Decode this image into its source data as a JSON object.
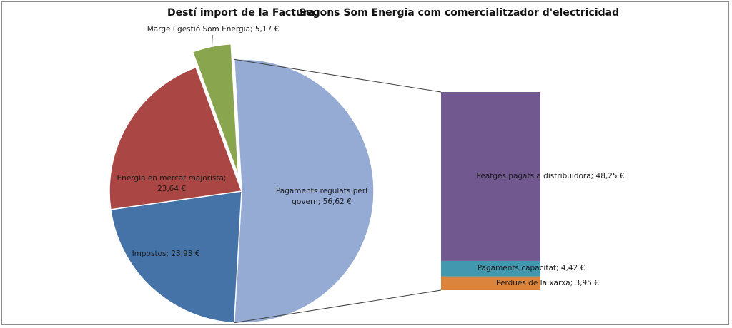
{
  "chart_data": {
    "type": "pie-of-bar",
    "title": "Destí import de la Factura",
    "subtitle": "Segons Som Energia com comercialitzador d'electricidad",
    "pie": {
      "values": [
        56.62,
        23.93,
        23.64,
        5.17
      ],
      "value_labels": [
        "Pagaments regulats perl govern; 56,62 €",
        "Impostos; 23,93 €",
        "Energia en mercat majorista; 23,64 €",
        "Marge i gestió Som Energia; 5,17 €"
      ],
      "colors": [
        "#95abd3",
        "#4572a7",
        "#aa4643",
        "#89a54e"
      ]
    },
    "bar": {
      "values": [
        3.95,
        4.42,
        48.25
      ],
      "value_labels": [
        "Perdues de la xarxa; 3,95 €",
        "Pagaments capacitat; 4,42 €",
        "Peatges pagats a distribuidora; 48,25 €"
      ],
      "colors": [
        "#db843d",
        "#4198af",
        "#71588f"
      ]
    }
  }
}
